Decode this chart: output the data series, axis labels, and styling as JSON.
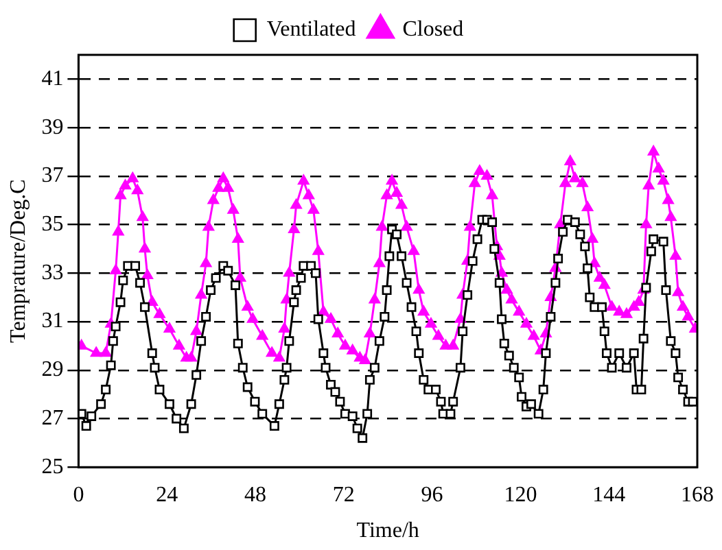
{
  "chart_data": {
    "type": "line",
    "xlabel": "Time/h",
    "ylabel": "Temprature/Deg.C",
    "xlim": [
      0,
      168
    ],
    "xticks": [
      0,
      24,
      48,
      72,
      96,
      120,
      144,
      168
    ],
    "ylim": [
      25,
      42
    ],
    "yticks": [
      25,
      27,
      29,
      31,
      33,
      35,
      37,
      39,
      41
    ],
    "grid": "y",
    "legend": "top",
    "series": [
      {
        "name": "Ventilated",
        "color": "#000000",
        "marker": "square",
        "x": [
          0.8,
          2.1,
          3.5,
          6.1,
          7.4,
          8.8,
          9.4,
          10.1,
          11.4,
          12.1,
          13.4,
          15.4,
          16.7,
          18.0,
          20.0,
          20.7,
          22.0,
          24.7,
          26.6,
          28.6,
          30.6,
          32.0,
          33.3,
          34.6,
          35.9,
          37.3,
          39.3,
          40.6,
          42.6,
          43.3,
          44.6,
          45.9,
          47.9,
          49.9,
          53.2,
          54.5,
          55.9,
          56.5,
          57.2,
          58.5,
          59.1,
          60.4,
          61.1,
          63.1,
          64.4,
          65.1,
          66.5,
          67.1,
          68.5,
          69.7,
          71.0,
          72.4,
          74.4,
          75.7,
          77.1,
          78.4,
          79.1,
          80.4,
          81.7,
          83.1,
          83.7,
          84.4,
          85.1,
          86.4,
          87.7,
          89.1,
          90.4,
          91.7,
          92.4,
          93.7,
          95.0,
          97.0,
          98.4,
          99.0,
          101.0,
          101.7,
          103.7,
          104.3,
          105.6,
          107.0,
          108.3,
          109.6,
          110.9,
          112.3,
          112.9,
          114.3,
          114.9,
          115.6,
          116.9,
          118.2,
          119.6,
          120.3,
          121.6,
          122.9,
          124.9,
          126.2,
          126.9,
          128.2,
          129.5,
          130.2,
          131.5,
          132.8,
          134.8,
          136.2,
          137.5,
          138.2,
          138.8,
          140.1,
          142.1,
          142.8,
          143.4,
          144.8,
          146.8,
          148.8,
          150.8,
          151.5,
          152.8,
          153.4,
          154.1,
          155.5,
          156.1,
          158.8,
          159.5,
          160.8,
          162.1,
          162.8,
          164.1,
          165.5,
          166.8
        ],
        "values": [
          27.2,
          26.7,
          27.1,
          27.6,
          28.2,
          29.2,
          30.2,
          30.8,
          31.8,
          32.7,
          33.3,
          33.3,
          32.6,
          31.6,
          29.7,
          29.1,
          28.2,
          27.6,
          27.0,
          26.6,
          27.6,
          28.8,
          30.2,
          31.2,
          32.3,
          32.8,
          33.3,
          33.1,
          32.5,
          30.1,
          29.1,
          28.3,
          27.7,
          27.2,
          26.7,
          27.6,
          28.6,
          29.1,
          30.2,
          31.8,
          32.3,
          32.8,
          33.3,
          33.3,
          33.0,
          31.1,
          29.7,
          29.1,
          28.4,
          28.1,
          27.7,
          27.2,
          27.1,
          26.6,
          26.2,
          27.2,
          28.6,
          29.1,
          30.2,
          31.2,
          32.3,
          33.7,
          34.8,
          34.6,
          33.7,
          32.6,
          31.6,
          30.6,
          29.7,
          28.6,
          28.2,
          28.2,
          27.7,
          27.2,
          27.2,
          27.7,
          29.1,
          30.6,
          32.1,
          33.5,
          34.4,
          35.2,
          35.2,
          35.1,
          34.0,
          32.6,
          31.1,
          30.1,
          29.6,
          29.1,
          28.7,
          27.9,
          27.5,
          27.6,
          27.2,
          28.2,
          29.7,
          31.2,
          32.6,
          33.6,
          34.7,
          35.2,
          35.1,
          34.6,
          34.1,
          33.2,
          32.0,
          31.6,
          31.6,
          30.6,
          29.7,
          29.1,
          29.7,
          29.1,
          29.7,
          28.2,
          28.2,
          30.3,
          32.4,
          33.9,
          34.4,
          34.3,
          32.3,
          30.2,
          29.7,
          28.7,
          28.2,
          27.7,
          27.7
        ]
      },
      {
        "name": "Closed",
        "color": "#ff00ff",
        "marker": "triangle",
        "x": [
          0.8,
          4.8,
          7.4,
          8.8,
          10.1,
          10.8,
          11.4,
          12.7,
          14.7,
          16.0,
          17.4,
          18.0,
          18.7,
          20.0,
          22.0,
          24.7,
          27.3,
          29.3,
          30.6,
          32.0,
          33.3,
          34.6,
          35.3,
          36.6,
          38.0,
          39.3,
          40.6,
          42.0,
          43.3,
          43.9,
          45.9,
          47.3,
          49.9,
          52.5,
          54.5,
          55.9,
          56.5,
          57.2,
          58.5,
          59.1,
          61.1,
          62.5,
          63.8,
          65.1,
          66.5,
          68.5,
          70.4,
          72.4,
          74.4,
          76.4,
          77.8,
          79.1,
          80.4,
          81.7,
          82.4,
          83.7,
          85.1,
          86.4,
          87.7,
          89.1,
          91.0,
          92.4,
          93.7,
          95.7,
          97.7,
          99.7,
          101.7,
          103.7,
          104.3,
          105.6,
          106.3,
          107.6,
          108.9,
          110.9,
          112.3,
          113.6,
          114.3,
          114.9,
          116.3,
          117.6,
          119.6,
          121.6,
          123.6,
          125.5,
          126.9,
          128.2,
          129.5,
          130.8,
          132.2,
          133.5,
          134.8,
          136.8,
          138.2,
          139.5,
          140.1,
          141.5,
          142.8,
          144.8,
          146.8,
          148.8,
          150.8,
          152.1,
          153.4,
          154.1,
          154.8,
          156.1,
          157.5,
          158.8,
          160.1,
          160.8,
          162.1,
          162.8,
          164.1,
          165.5,
          167.4
        ],
        "values": [
          30.0,
          29.7,
          29.7,
          30.9,
          33.1,
          34.7,
          36.2,
          36.6,
          36.9,
          36.4,
          35.3,
          34.0,
          32.9,
          31.8,
          31.3,
          30.7,
          30.0,
          29.5,
          29.5,
          30.6,
          32.1,
          33.4,
          34.9,
          36.0,
          36.5,
          36.9,
          36.5,
          35.6,
          34.4,
          32.8,
          31.6,
          31.1,
          30.4,
          29.7,
          29.5,
          30.7,
          31.9,
          33.0,
          34.8,
          35.8,
          36.8,
          36.2,
          35.6,
          33.9,
          31.4,
          31.1,
          30.5,
          30.0,
          29.8,
          29.5,
          29.4,
          30.5,
          31.9,
          33.4,
          34.9,
          36.2,
          36.8,
          36.3,
          35.8,
          34.9,
          33.9,
          32.3,
          31.4,
          30.9,
          30.4,
          30.0,
          30.0,
          31.1,
          32.1,
          33.5,
          34.9,
          36.7,
          37.2,
          37.0,
          36.2,
          34.1,
          33.7,
          33.0,
          32.3,
          31.9,
          31.4,
          30.9,
          30.4,
          29.8,
          30.5,
          32.0,
          33.2,
          35.0,
          36.7,
          37.6,
          36.9,
          36.7,
          35.7,
          34.4,
          33.4,
          32.8,
          32.5,
          31.6,
          31.4,
          31.3,
          31.6,
          31.8,
          32.3,
          35.0,
          36.6,
          38.0,
          37.3,
          36.8,
          36.0,
          35.3,
          33.7,
          32.2,
          31.6,
          31.2,
          30.7
        ]
      }
    ]
  }
}
